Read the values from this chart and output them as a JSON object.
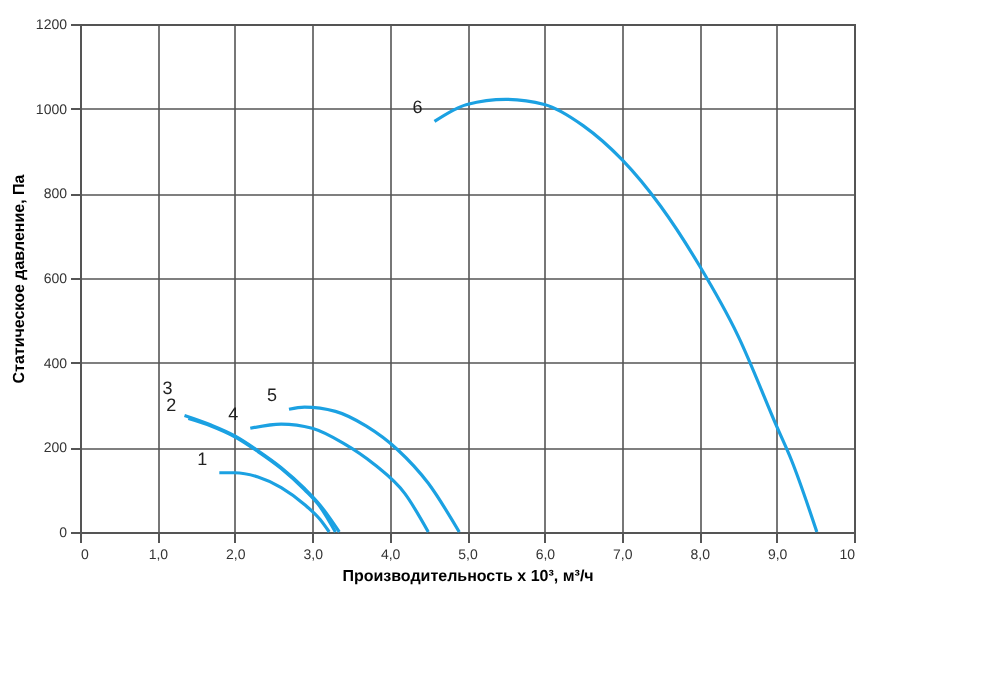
{
  "chart_data": {
    "type": "line",
    "xlabel": "Производительность x 10³, м³/ч",
    "ylabel": "Статическое давление, Па",
    "xlim": [
      0,
      10
    ],
    "ylim": [
      0,
      1200
    ],
    "xticks": [
      0,
      {
        "value": 1,
        "label": "1,0"
      },
      {
        "value": 2,
        "label": "2,0"
      },
      {
        "value": 3,
        "label": "3,0"
      },
      {
        "value": 4,
        "label": "4,0"
      },
      {
        "value": 5,
        "label": "5,0"
      },
      {
        "value": 6,
        "label": "6,0"
      },
      {
        "value": 7,
        "label": "7,0"
      },
      {
        "value": 8,
        "label": "8,0"
      },
      {
        "value": 9,
        "label": "9,0"
      },
      10
    ],
    "yticks": [
      0,
      200,
      400,
      600,
      800,
      1000,
      1200
    ],
    "grid": true,
    "legend": false,
    "marker": "none",
    "line_style": "solid",
    "series": [
      {
        "name": "1",
        "color": "#1ba1e2",
        "x": [
          1.8,
          2.0,
          2.3,
          2.6,
          2.9,
          3.1,
          3.22
        ],
        "values": [
          140,
          140,
          130,
          105,
          65,
          30,
          0
        ]
      },
      {
        "name": "2",
        "color": "#1ba1e2",
        "x": [
          1.4,
          1.7,
          2.0,
          2.3,
          2.6,
          2.9,
          3.1,
          3.3
        ],
        "values": [
          268,
          250,
          225,
          190,
          150,
          100,
          60,
          0
        ]
      },
      {
        "name": "3",
        "color": "#1ba1e2",
        "x": [
          1.35,
          1.7,
          2.0,
          2.3,
          2.6,
          2.9,
          3.1,
          3.35
        ],
        "values": [
          275,
          252,
          227,
          192,
          152,
          103,
          64,
          0
        ]
      },
      {
        "name": "4",
        "color": "#1ba1e2",
        "x": [
          2.2,
          2.6,
          3.0,
          3.4,
          3.8,
          4.2,
          4.5
        ],
        "values": [
          245,
          255,
          245,
          210,
          160,
          90,
          0
        ]
      },
      {
        "name": "5",
        "color": "#1ba1e2",
        "x": [
          2.7,
          2.9,
          3.3,
          3.7,
          4.1,
          4.5,
          4.9
        ],
        "values": [
          290,
          295,
          285,
          250,
          195,
          115,
          0
        ]
      },
      {
        "name": "6",
        "color": "#1ba1e2",
        "x": [
          4.58,
          5.0,
          5.5,
          6.0,
          6.5,
          7.0,
          7.5,
          8.0,
          8.5,
          9.0,
          9.2,
          9.52
        ],
        "values": [
          970,
          1010,
          1022,
          1010,
          960,
          880,
          770,
          630,
          464,
          250,
          166,
          0
        ]
      }
    ]
  }
}
